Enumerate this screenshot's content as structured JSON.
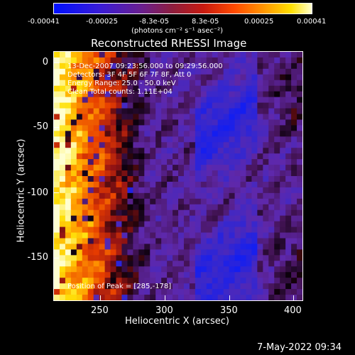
{
  "colorbar": {
    "ticks": [
      "-0.00041",
      "-0.00025",
      "-8.3e-05",
      "8.3e-05",
      "0.00025",
      "0.00041"
    ],
    "unit": "(photons cm⁻² s⁻¹ asec⁻²)"
  },
  "title": "Reconstructed RHESSI Image",
  "annotations": {
    "time": "13-Dec-2007 09:23:56.000 to 09:29:56.000",
    "detectors": "Detectors: 3F 4F 5F 6F 7F 8F, Att 0",
    "energy": "Energy Range: 25.0 - 50.0 keV",
    "method": "Clean    Total counts: 1.11E+04",
    "peak": "Position of Peak = [285,-178]"
  },
  "axes": {
    "xlabel": "Heliocentric X (arcsec)",
    "ylabel": "Heliocentric Y (arcsec)",
    "xticks": [
      "250",
      "300",
      "350",
      "400"
    ],
    "yticks": [
      "0",
      "-50",
      "-100",
      "-150"
    ]
  },
  "footer": "7-May-2022 09:34"
}
